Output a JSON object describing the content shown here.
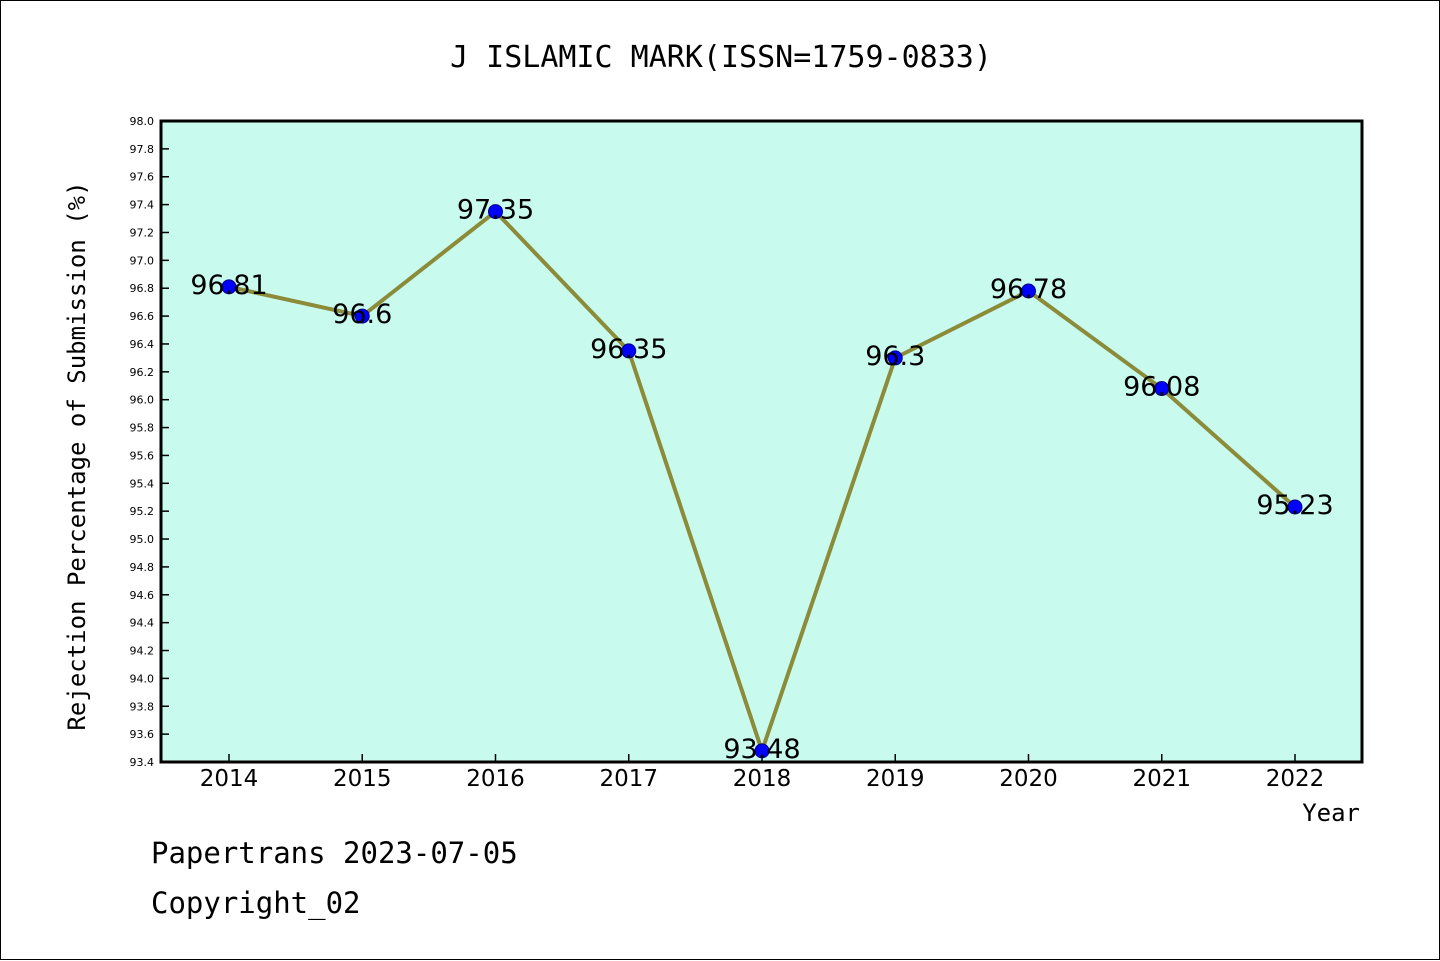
{
  "chart_data": {
    "type": "line",
    "title": "J ISLAMIC MARK(ISSN=1759-0833)",
    "xlabel": "Year",
    "ylabel": "Rejection Percentage of Submission (%)",
    "categories": [
      "2014",
      "2015",
      "2016",
      "2017",
      "2018",
      "2019",
      "2020",
      "2021",
      "2022"
    ],
    "values": [
      96.81,
      96.6,
      97.35,
      96.35,
      93.48,
      96.3,
      96.78,
      96.08,
      95.23
    ],
    "data_labels": [
      "96.81",
      "96.6",
      "97.35",
      "96.35",
      "93.48",
      "96.3",
      "96.78",
      "96.08",
      "95.23"
    ],
    "ylim": [
      93.4,
      98.0
    ],
    "yticks": [
      "93.4",
      "93.6",
      "93.8",
      "94.0",
      "94.2",
      "94.4",
      "94.6",
      "94.8",
      "95.0",
      "95.2",
      "95.4",
      "95.6",
      "95.8",
      "96.0",
      "96.2",
      "96.4",
      "96.6",
      "96.8",
      "97.0",
      "97.2",
      "97.4",
      "97.6",
      "97.8",
      "98.0"
    ],
    "grid": false,
    "colors": {
      "plot_background": "#c8fbee",
      "line": "#8b8b3a",
      "marker": "#0000ff"
    }
  },
  "footer": {
    "date_line": "Papertrans 2023-07-05",
    "copyright": "Copyright_02"
  }
}
